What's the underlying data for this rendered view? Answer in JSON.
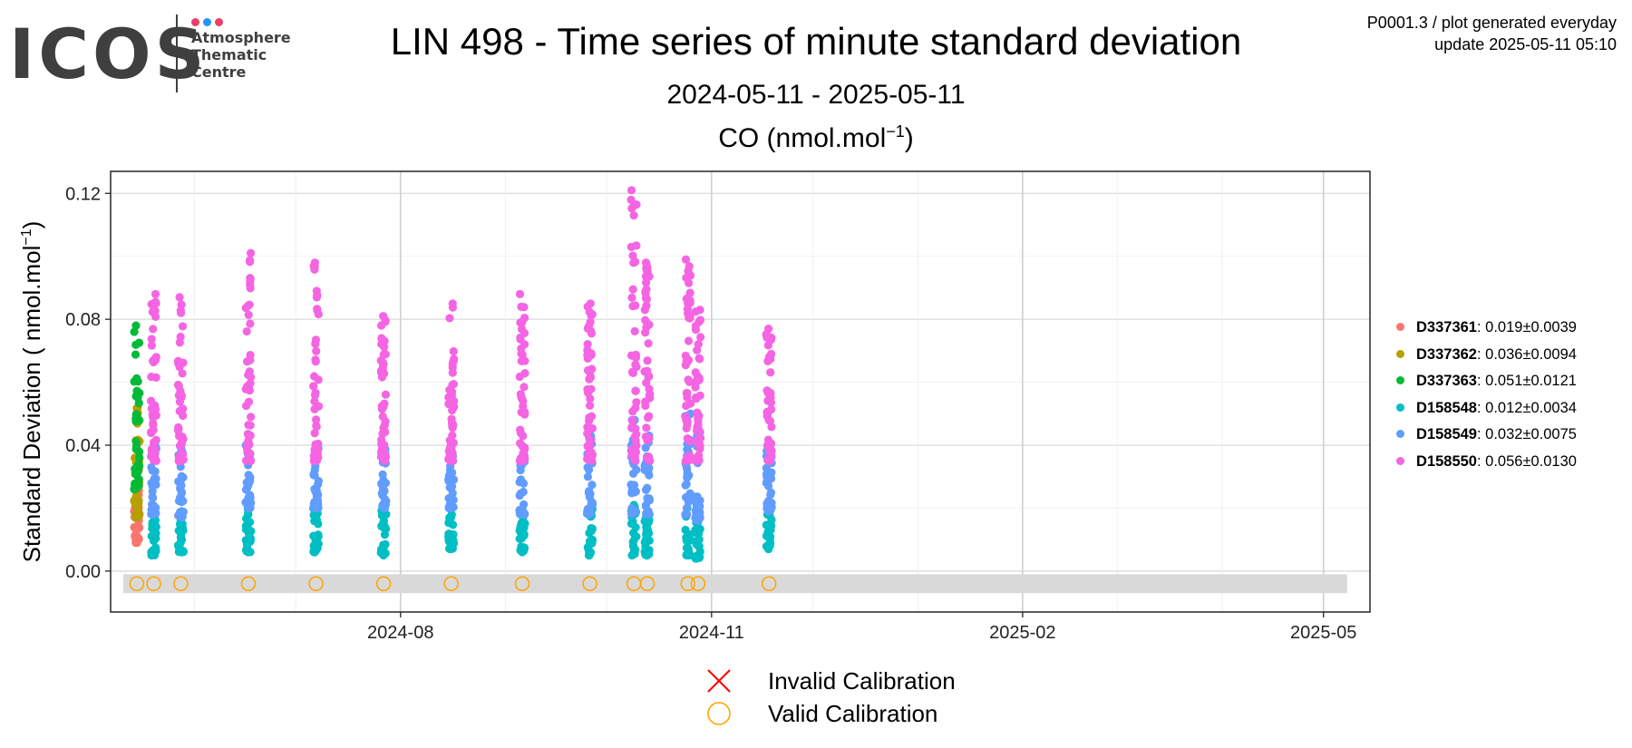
{
  "logo": {
    "word": "ICOS",
    "line1": "Atmosphere",
    "line2": "Thematic",
    "line3": "Centre",
    "dot_colors": [
      "#e83e6c",
      "#2196f3",
      "#e83e6c"
    ]
  },
  "meta": {
    "line1": "P0001.3 / plot generated everyday",
    "line2": "update  2025-05-11 05:10"
  },
  "header": {
    "title": "LIN 498 - Time series of minute standard deviation",
    "subtitle": "2024-05-11 - 2025-05-11",
    "species": "CO (nmol.mol",
    "species_sup": "−1",
    "species_close": ")"
  },
  "chart_data": {
    "type": "scatter",
    "ylabel": "Standard Deviation ( nmol.mol",
    "ylabel_sup": "−1",
    "ylabel_close": ")",
    "xlim": [
      "2024-05-11",
      "2025-05-11"
    ],
    "ylim": [
      -0.013,
      0.127
    ],
    "x_ticks": [
      "2024-08",
      "2024-11",
      "2025-02",
      "2025-05"
    ],
    "y_ticks": [
      0.0,
      0.04,
      0.08,
      0.12
    ],
    "y_tick_labels": [
      "0.00",
      "0.04",
      "0.08",
      "0.12"
    ],
    "grid": true,
    "legend_position": "right",
    "series": [
      {
        "name": "D337361",
        "color": "#f8766d",
        "stat": ": 0.019±0.0039",
        "groups": [
          {
            "date": "2024-05-15",
            "min": 0.009,
            "max": 0.028,
            "n": 40
          }
        ]
      },
      {
        "name": "D337362",
        "color": "#b79f00",
        "stat": ": 0.036±0.0094",
        "groups": [
          {
            "date": "2024-05-15",
            "min": 0.017,
            "max": 0.052,
            "n": 40
          }
        ]
      },
      {
        "name": "D337363",
        "color": "#00ba38",
        "stat": ": 0.051±0.0121",
        "groups": [
          {
            "date": "2024-05-15",
            "min": 0.026,
            "max": 0.078,
            "n": 40
          }
        ]
      },
      {
        "name": "D158548",
        "color": "#00bfc4",
        "stat": ": 0.012±0.0034",
        "groups": [
          {
            "date": "2024-05-20",
            "min": 0.005,
            "max": 0.02,
            "n": 25
          },
          {
            "date": "2024-05-28",
            "min": 0.006,
            "max": 0.019,
            "n": 25
          },
          {
            "date": "2024-06-17",
            "min": 0.006,
            "max": 0.02,
            "n": 25
          },
          {
            "date": "2024-07-07",
            "min": 0.006,
            "max": 0.02,
            "n": 25
          },
          {
            "date": "2024-07-27",
            "min": 0.005,
            "max": 0.02,
            "n": 25
          },
          {
            "date": "2024-08-16",
            "min": 0.007,
            "max": 0.018,
            "n": 25
          },
          {
            "date": "2024-09-06",
            "min": 0.006,
            "max": 0.017,
            "n": 25
          },
          {
            "date": "2024-09-26",
            "min": 0.005,
            "max": 0.02,
            "n": 25
          },
          {
            "date": "2024-10-09",
            "min": 0.005,
            "max": 0.021,
            "n": 25
          },
          {
            "date": "2024-10-13",
            "min": 0.005,
            "max": 0.018,
            "n": 25
          },
          {
            "date": "2024-10-25",
            "min": 0.005,
            "max": 0.02,
            "n": 25
          },
          {
            "date": "2024-10-28",
            "min": 0.004,
            "max": 0.019,
            "n": 25
          },
          {
            "date": "2024-11-18",
            "min": 0.007,
            "max": 0.021,
            "n": 25
          }
        ]
      },
      {
        "name": "D158549",
        "color": "#619cff",
        "stat": ": 0.032±0.0075",
        "groups": [
          {
            "date": "2024-05-20",
            "min": 0.018,
            "max": 0.04,
            "n": 30
          },
          {
            "date": "2024-05-28",
            "min": 0.017,
            "max": 0.039,
            "n": 30
          },
          {
            "date": "2024-06-17",
            "min": 0.02,
            "max": 0.04,
            "n": 30
          },
          {
            "date": "2024-07-07",
            "min": 0.02,
            "max": 0.04,
            "n": 30
          },
          {
            "date": "2024-07-27",
            "min": 0.02,
            "max": 0.04,
            "n": 30
          },
          {
            "date": "2024-08-16",
            "min": 0.02,
            "max": 0.039,
            "n": 30
          },
          {
            "date": "2024-09-06",
            "min": 0.018,
            "max": 0.039,
            "n": 30
          },
          {
            "date": "2024-09-26",
            "min": 0.018,
            "max": 0.043,
            "n": 30
          },
          {
            "date": "2024-10-09",
            "min": 0.018,
            "max": 0.048,
            "n": 30
          },
          {
            "date": "2024-10-13",
            "min": 0.018,
            "max": 0.043,
            "n": 30
          },
          {
            "date": "2024-10-25",
            "min": 0.018,
            "max": 0.05,
            "n": 30
          },
          {
            "date": "2024-10-28",
            "min": 0.016,
            "max": 0.045,
            "n": 30
          },
          {
            "date": "2024-11-18",
            "min": 0.019,
            "max": 0.04,
            "n": 30
          }
        ]
      },
      {
        "name": "D158550",
        "color": "#f564e3",
        "stat": ": 0.056±0.0130",
        "groups": [
          {
            "date": "2024-05-20",
            "min": 0.035,
            "max": 0.088,
            "n": 45
          },
          {
            "date": "2024-05-28",
            "min": 0.035,
            "max": 0.087,
            "n": 45
          },
          {
            "date": "2024-06-17",
            "min": 0.035,
            "max": 0.101,
            "n": 45
          },
          {
            "date": "2024-07-07",
            "min": 0.035,
            "max": 0.098,
            "n": 45
          },
          {
            "date": "2024-07-27",
            "min": 0.035,
            "max": 0.081,
            "n": 45
          },
          {
            "date": "2024-08-16",
            "min": 0.035,
            "max": 0.085,
            "n": 45
          },
          {
            "date": "2024-09-06",
            "min": 0.035,
            "max": 0.088,
            "n": 45
          },
          {
            "date": "2024-09-26",
            "min": 0.035,
            "max": 0.085,
            "n": 45
          },
          {
            "date": "2024-10-09",
            "min": 0.035,
            "max": 0.121,
            "n": 45
          },
          {
            "date": "2024-10-13",
            "min": 0.035,
            "max": 0.098,
            "n": 45
          },
          {
            "date": "2024-10-25",
            "min": 0.035,
            "max": 0.099,
            "n": 45
          },
          {
            "date": "2024-10-28",
            "min": 0.035,
            "max": 0.083,
            "n": 45
          },
          {
            "date": "2024-11-18",
            "min": 0.035,
            "max": 0.077,
            "n": 45
          }
        ]
      }
    ],
    "valid_calibrations": {
      "y": -0.004,
      "color": "#ffa500",
      "dates": [
        "2024-05-15",
        "2024-05-20",
        "2024-05-28",
        "2024-06-17",
        "2024-07-07",
        "2024-07-27",
        "2024-08-16",
        "2024-09-06",
        "2024-09-26",
        "2024-10-09",
        "2024-10-13",
        "2024-10-25",
        "2024-10-28",
        "2024-11-18"
      ]
    },
    "calibration_band": {
      "from": "2024-05-11",
      "to": "2025-05-08",
      "ymin": -0.007,
      "ymax": -0.001,
      "color": "#d9d9d9"
    }
  },
  "bottom_legend": {
    "invalid_label": "Invalid Calibration",
    "invalid_color": "#ff0000",
    "valid_label": "Valid Calibration",
    "valid_color": "#ffa500"
  }
}
